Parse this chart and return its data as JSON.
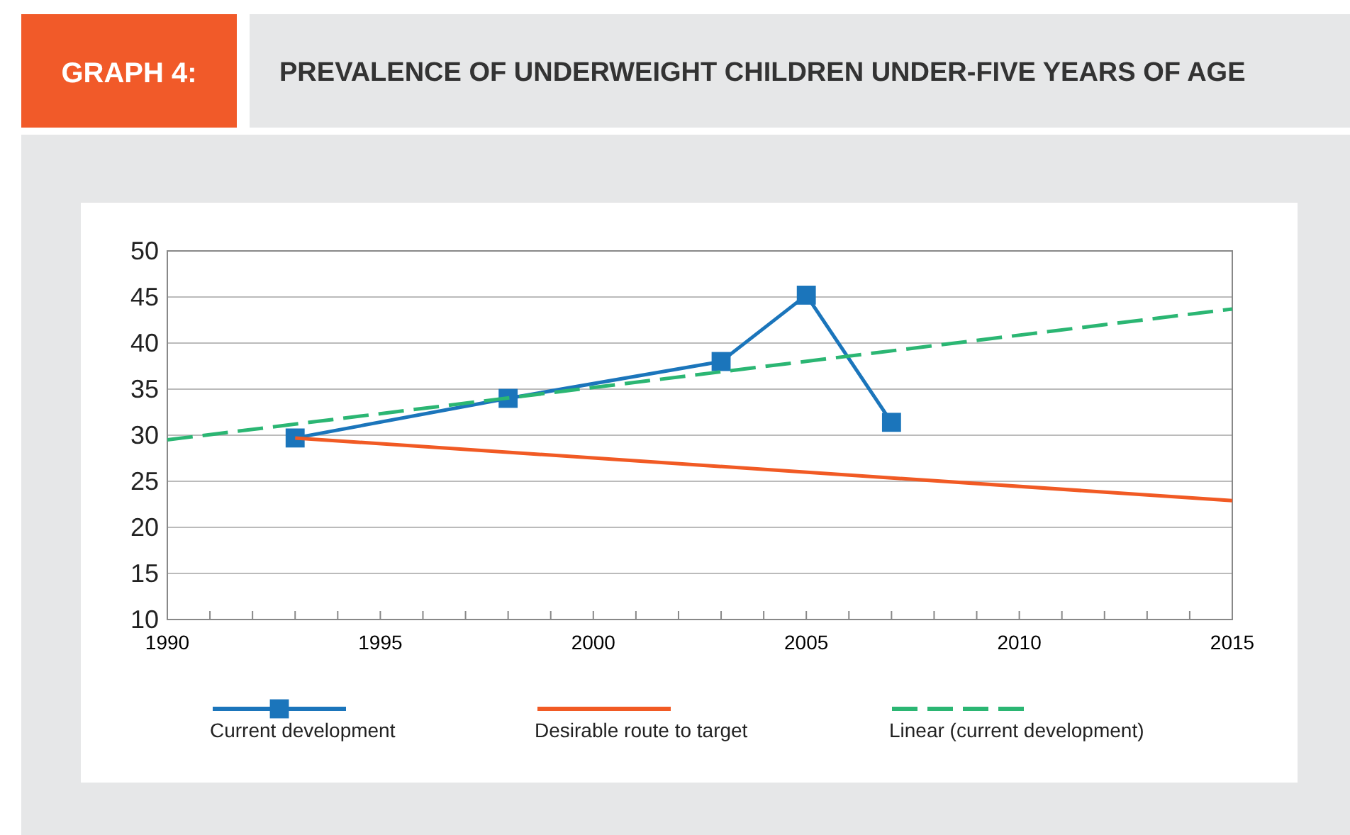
{
  "chart_data": {
    "type": "line",
    "title": "PREVALENCE OF UNDERWEIGHT CHILDREN UNDER-FIVE YEARS OF AGE",
    "annotations": [
      "GRAPH 4:"
    ],
    "series": [
      {
        "name": "Current development",
        "color": "#1b75bb",
        "x": [
          1993,
          1998,
          2003,
          2005,
          2007
        ],
        "values": [
          29.7,
          34.0,
          38.0,
          45.2,
          31.4
        ],
        "marker": "square",
        "line_style": "solid"
      },
      {
        "name": "Desirable route to target",
        "color": "#f15a24",
        "x": [
          1993,
          2015
        ],
        "values": [
          29.7,
          22.9
        ],
        "marker": "none",
        "line_style": "solid"
      },
      {
        "name": "Linear (current development)",
        "color": "#2bb673",
        "x": [
          1990,
          2015
        ],
        "values": [
          29.5,
          43.7
        ],
        "marker": "none",
        "line_style": "dashed"
      }
    ],
    "xlim": [
      1990,
      2015
    ],
    "xticks": [
      1990,
      {
        "value": 1991,
        "label": null
      },
      {
        "value": 1992,
        "label": null
      },
      {
        "value": 1993,
        "label": null
      },
      {
        "value": 1994,
        "label": null
      },
      1995,
      {
        "value": 1996,
        "label": null
      },
      {
        "value": 1997,
        "label": null
      },
      {
        "value": 1998,
        "label": null
      },
      {
        "value": 1999,
        "label": null
      },
      2000,
      {
        "value": 2001,
        "label": null
      },
      {
        "value": 2002,
        "label": null
      },
      {
        "value": 2003,
        "label": null
      },
      {
        "value": 2004,
        "label": null
      },
      2005,
      {
        "value": 2006,
        "label": null
      },
      {
        "value": 2007,
        "label": null
      },
      {
        "value": 2008,
        "label": null
      },
      {
        "value": 2009,
        "label": null
      },
      2010,
      {
        "value": 2011,
        "label": null
      },
      {
        "value": 2012,
        "label": null
      },
      {
        "value": 2013,
        "label": null
      },
      {
        "value": 2014,
        "label": null
      },
      2015
    ],
    "ylim": [
      10,
      50
    ],
    "yticks": [
      10,
      15,
      20,
      25,
      30,
      35,
      40,
      45,
      50
    ],
    "grid": "y",
    "legend": "bottom"
  }
}
